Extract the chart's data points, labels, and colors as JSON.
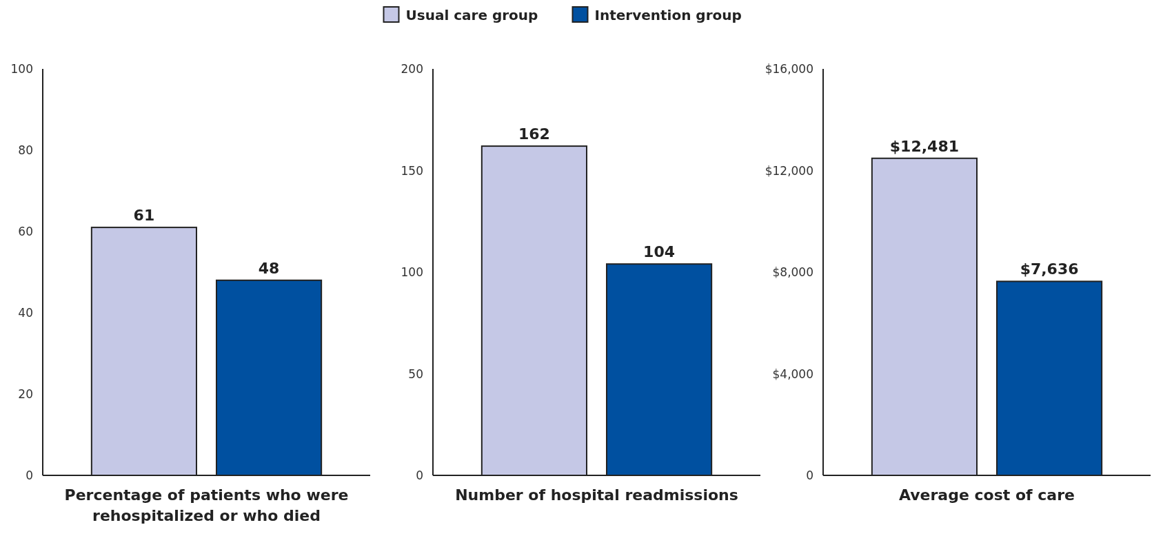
{
  "chart_data": [
    {
      "type": "bar",
      "xlabel": "Percentage of patients who were rehospitalized or who died",
      "categories": [
        null
      ],
      "series": [
        {
          "name": "Usual care group",
          "color": "#c5c8e6",
          "values": [
            61
          ]
        },
        {
          "name": "Intervention group",
          "color": "#0050a0",
          "values": [
            48
          ]
        }
      ],
      "ylim": [
        0,
        100
      ],
      "yticks": [
        0,
        20,
        40,
        60,
        80,
        100
      ],
      "data_labels": true,
      "legend": "top"
    },
    {
      "type": "bar",
      "xlabel": "Number of hospital readmissions",
      "categories": [
        null
      ],
      "series": [
        {
          "color": "#c5c8e6",
          "values": [
            162
          ]
        },
        {
          "color": "#0050a0",
          "values": [
            104
          ]
        }
      ],
      "ylim": [
        0,
        200
      ],
      "yticks": [
        0,
        50,
        100,
        150,
        200
      ],
      "data_labels": true
    },
    {
      "type": "bar",
      "xlabel": "Average cost of care",
      "categories": [
        null
      ],
      "series": [
        {
          "color": "#c5c8e6",
          "values": [
            12481
          ],
          "value_labels": [
            "$12,481"
          ]
        },
        {
          "color": "#0050a0",
          "values": [
            7636
          ],
          "value_labels": [
            "$7,636"
          ]
        }
      ],
      "ylim": [
        0,
        16000
      ],
      "yticks": [
        {
          "value": 0,
          "label": "0"
        },
        {
          "value": 4000,
          "label": "$4,000"
        },
        {
          "value": 8000,
          "label": "$8,000"
        },
        {
          "value": 12000,
          "label": "$12,000"
        },
        {
          "value": 16000,
          "label": "$16,000"
        }
      ]
    }
  ]
}
